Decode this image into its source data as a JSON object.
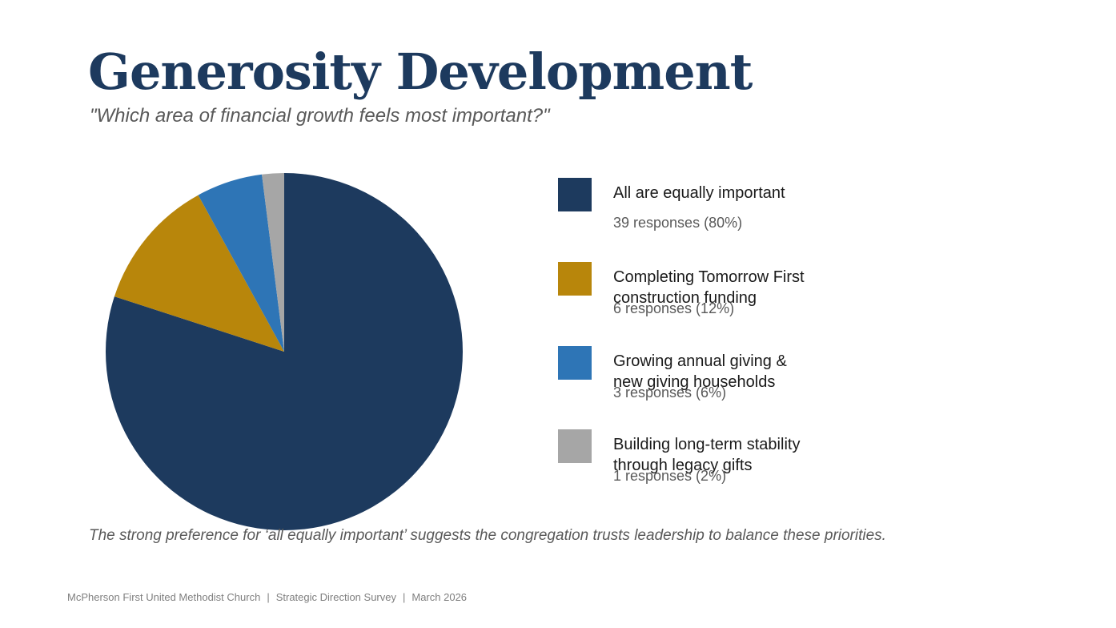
{
  "slide": {
    "title": "Generosity Development",
    "subtitle": "\"Which area of financial growth feels most important?\"",
    "takeaway": "The strong preference for ‘all equally important’ suggests the congregation trusts leadership to balance these priorities.",
    "footer": {
      "organization": "McPherson First United Methodist Church",
      "separator": "|",
      "survey": "Strategic Direction Survey",
      "date": "March 2026"
    }
  },
  "chart_data": {
    "type": "pie",
    "title": "",
    "legend_position": "right",
    "series": [
      {
        "name": "All are equally important",
        "label_lines": [
          "All are equally important"
        ],
        "detail": "39 responses (80%)",
        "value": 39,
        "percent": 80,
        "color": "#1d3a5e"
      },
      {
        "name": "Completing Tomorrow First construction funding",
        "label_lines": [
          "Completing Tomorrow First",
          "construction funding"
        ],
        "detail": "6 responses (12%)",
        "value": 6,
        "percent": 12,
        "color": "#b8860b"
      },
      {
        "name": "Growing annual giving & new giving households",
        "label_lines": [
          "Growing annual giving &",
          "new giving households"
        ],
        "detail": "3 responses (6%)",
        "value": 3,
        "percent": 6,
        "color": "#2e75b6"
      },
      {
        "name": "Building long-term stability through legacy gifts",
        "label_lines": [
          "Building long-term stability",
          "through legacy gifts"
        ],
        "detail": "1 responses (2%)",
        "value": 1,
        "percent": 2,
        "color": "#a6a6a6"
      }
    ]
  }
}
